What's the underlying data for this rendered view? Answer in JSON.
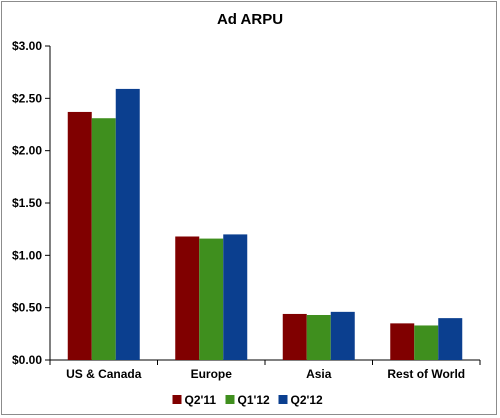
{
  "chart_data": {
    "type": "bar",
    "title": "Ad ARPU",
    "xlabel": "",
    "ylabel": "",
    "categories": [
      "US & Canada",
      "Europe",
      "Asia",
      "Rest of World"
    ],
    "series": [
      {
        "name": "Q2'11",
        "color": "#800000",
        "values": [
          2.37,
          1.18,
          0.44,
          0.35
        ]
      },
      {
        "name": "Q1'12",
        "color": "#3f8f1e",
        "values": [
          2.31,
          1.16,
          0.43,
          0.33
        ]
      },
      {
        "name": "Q2'12",
        "color": "#0b3f8f",
        "values": [
          2.59,
          1.2,
          0.46,
          0.4
        ]
      }
    ],
    "ylim": [
      0,
      3.0
    ],
    "yticks": [
      0,
      0.5,
      1.0,
      1.5,
      2.0,
      2.5,
      3.0
    ],
    "ytick_labels": [
      "$0.00",
      "$0.50",
      "$1.00",
      "$1.50",
      "$2.00",
      "$2.50",
      "$3.00"
    ],
    "grid": false,
    "legend_position": "bottom"
  }
}
